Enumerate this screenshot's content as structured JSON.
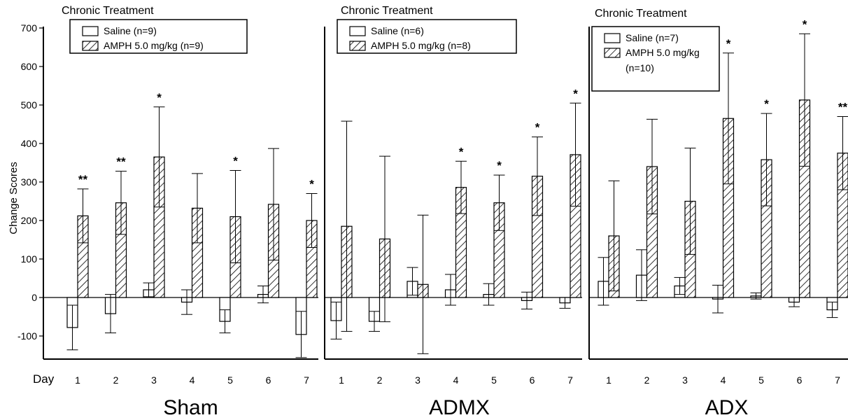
{
  "figure": {
    "y_axis_label": "Change Scores",
    "x_axis_prefix": "Day"
  },
  "chart_data": [
    {
      "type": "bar",
      "title": "Chronic Treatment",
      "panel_label": "Sham",
      "xlabel": "Day",
      "ylabel": "Change Scores",
      "ylim": [
        -160,
        700
      ],
      "yticks": [
        -100,
        0,
        100,
        200,
        300,
        400,
        500,
        600,
        700
      ],
      "categories": [
        "1",
        "2",
        "3",
        "4",
        "5",
        "6",
        "7"
      ],
      "legend_placement": "top-left",
      "series": [
        {
          "name": "Saline (n=9)",
          "pattern": "open",
          "values": [
            -78,
            -42,
            20,
            -12,
            -62,
            8,
            -96
          ],
          "errors": [
            58,
            50,
            18,
            32,
            30,
            22,
            60
          ]
        },
        {
          "name": "AMPH 5.0 mg/kg (n=9)",
          "pattern": "hatched",
          "values": [
            212,
            246,
            365,
            232,
            210,
            242,
            200
          ],
          "errors": [
            70,
            82,
            130,
            90,
            120,
            145,
            70
          ]
        }
      ],
      "significance": [
        "**",
        "**",
        "*",
        "",
        "*",
        "",
        "*"
      ]
    },
    {
      "type": "bar",
      "title": "Chronic Treatment",
      "panel_label": "ADMX",
      "xlabel": "Day",
      "ylabel": "Change Scores",
      "ylim": [
        -160,
        700
      ],
      "categories": [
        "1",
        "2",
        "3",
        "4",
        "5",
        "6",
        "7"
      ],
      "legend_placement": "top-left",
      "series": [
        {
          "name": "Saline (n=6)",
          "pattern": "open",
          "values": [
            -60,
            -62,
            42,
            20,
            8,
            -8,
            -14
          ],
          "errors": [
            48,
            26,
            36,
            40,
            28,
            22,
            14
          ]
        },
        {
          "name": "AMPH 5.0 mg/kg (n=8)",
          "pattern": "hatched",
          "values": [
            185,
            152,
            34,
            286,
            246,
            315,
            371
          ],
          "errors": [
            273,
            215,
            180,
            68,
            72,
            102,
            134
          ]
        }
      ],
      "significance": [
        "",
        "",
        "",
        "*",
        "*",
        "*",
        "*"
      ]
    },
    {
      "type": "bar",
      "title": "Chronic Treatment",
      "panel_label": "ADX",
      "xlabel": "Day",
      "ylabel": "Change Scores",
      "ylim": [
        -160,
        700
      ],
      "categories": [
        "1",
        "2",
        "3",
        "4",
        "5",
        "6",
        "7"
      ],
      "legend_placement": "top-left",
      "series": [
        {
          "name": "Saline (n=7)",
          "name_lines": [
            "Saline (n=7)"
          ],
          "pattern": "open",
          "values": [
            42,
            58,
            30,
            -4,
            4,
            -12,
            -32
          ],
          "errors": [
            62,
            66,
            22,
            36,
            8,
            12,
            20
          ]
        },
        {
          "name": "AMPH 5.0 mg/kg (n=10)",
          "name_lines": [
            "AMPH 5.0 mg/kg",
            "(n=10)"
          ],
          "pattern": "hatched",
          "values": [
            160,
            340,
            250,
            465,
            358,
            513,
            375
          ],
          "errors": [
            143,
            123,
            138,
            170,
            120,
            172,
            95
          ]
        }
      ],
      "significance": [
        "",
        "",
        "",
        "*",
        "*",
        "*",
        "**"
      ]
    }
  ]
}
